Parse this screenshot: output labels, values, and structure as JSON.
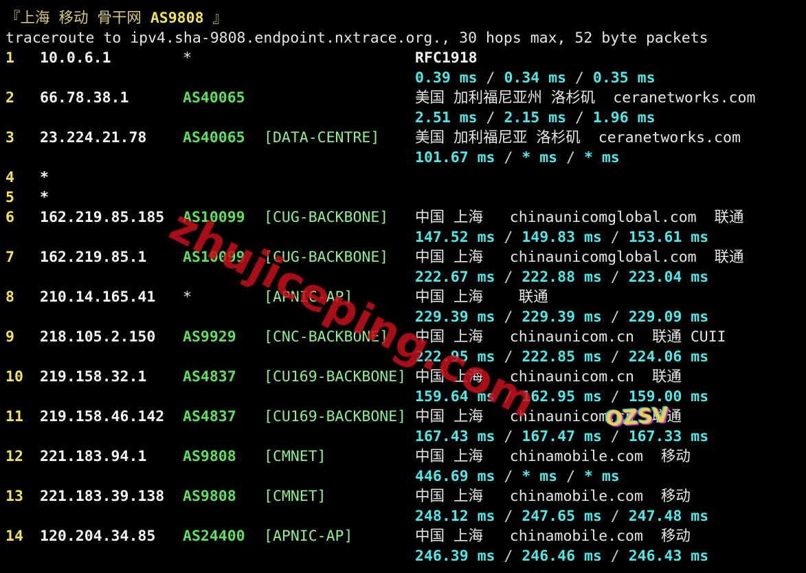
{
  "header": {
    "title_prefix": "『上海 移动 骨干网 ",
    "title_asn": "AS9808",
    "title_suffix": " 』",
    "command": "traceroute to ipv4.sha-9808.endpoint.nxtrace.org., 30 hops max, 52 byte packets"
  },
  "colors": {
    "hop": "#f2e35a",
    "asn": "#5ee05e",
    "tag": "#8ef08e",
    "rtt": "#4fe8e8",
    "background": "#000000"
  },
  "hops": [
    {
      "n": "1",
      "ip": "10.0.6.1",
      "asn": "*",
      "tag": "",
      "geo": "RFC1918",
      "rtt": [
        "0.39 ms",
        "0.34 ms",
        "0.35 ms"
      ]
    },
    {
      "n": "2",
      "ip": "66.78.38.1",
      "asn": "AS40065",
      "tag": "",
      "geo": "美国 加利福尼亚州 洛杉矶  ceranetworks.com",
      "rtt": [
        "2.51 ms",
        "2.15 ms",
        "1.96 ms"
      ]
    },
    {
      "n": "3",
      "ip": "23.224.21.78",
      "asn": "AS40065",
      "tag": "[DATA-CENTRE]",
      "geo": "美国 加利福尼亚 洛杉矶  ceranetworks.com",
      "rtt": [
        "101.67 ms",
        "* ms",
        "* ms"
      ]
    },
    {
      "n": "4",
      "ip": "*"
    },
    {
      "n": "5",
      "ip": "*"
    },
    {
      "n": "6",
      "ip": "162.219.85.185",
      "asn": "AS10099",
      "tag": "[CUG-BACKBONE]",
      "geo": "中国 上海   chinaunicomglobal.com  联通",
      "rtt": [
        "147.52 ms",
        "149.83 ms",
        "153.61 ms"
      ]
    },
    {
      "n": "7",
      "ip": "162.219.85.1",
      "asn": "AS10099",
      "tag": "[CUG-BACKBONE]",
      "geo": "中国 上海   chinaunicomglobal.com  联通",
      "rtt": [
        "222.67 ms",
        "222.88 ms",
        "223.04 ms"
      ]
    },
    {
      "n": "8",
      "ip": "210.14.165.41",
      "asn": "*",
      "tag": "[APNIC-AP]",
      "geo": "中国 上海    联通",
      "rtt": [
        "229.39 ms",
        "229.39 ms",
        "229.09 ms"
      ]
    },
    {
      "n": "9",
      "ip": "218.105.2.150",
      "asn": "AS9929",
      "tag": "[CNC-BACKBONE]",
      "geo": "中国 上海   chinaunicom.cn  联通 CUII",
      "rtt": [
        "222.95 ms",
        "222.85 ms",
        "224.06 ms"
      ]
    },
    {
      "n": "10",
      "ip": "219.158.32.1",
      "asn": "AS4837",
      "tag": "[CU169-BACKBONE]",
      "geo": "中国 上海   chinaunicom.cn  联通",
      "rtt": [
        "159.64 ms",
        "162.95 ms",
        "159.00 ms"
      ]
    },
    {
      "n": "11",
      "ip": "219.158.46.142",
      "asn": "AS4837",
      "tag": "[CU169-BACKBONE]",
      "geo": "中国 上海   chinaunicom.cn  联通",
      "rtt": [
        "167.43 ms",
        "167.47 ms",
        "167.33 ms"
      ]
    },
    {
      "n": "12",
      "ip": "221.183.94.1",
      "asn": "AS9808",
      "tag": "[CMNET]",
      "geo": "中国 上海   chinamobile.com  移动",
      "rtt": [
        "446.69 ms",
        "* ms",
        "* ms"
      ]
    },
    {
      "n": "13",
      "ip": "221.183.39.138",
      "asn": "AS9808",
      "tag": "[CMNET]",
      "geo": "中国 上海   chinamobile.com  移动",
      "rtt": [
        "248.12 ms",
        "247.65 ms",
        "247.48 ms"
      ]
    },
    {
      "n": "14",
      "ip": "120.204.34.85",
      "asn": "AS24400",
      "tag": "[APNIC-AP]",
      "geo": "中国 上海   chinamobile.com  移动",
      "rtt": [
        "246.39 ms",
        "246.46 ms",
        "246.43 ms"
      ]
    }
  ],
  "rtt_separator": " / ",
  "watermarks": {
    "text": "zhujiceping.com",
    "logo": "OZSV"
  }
}
